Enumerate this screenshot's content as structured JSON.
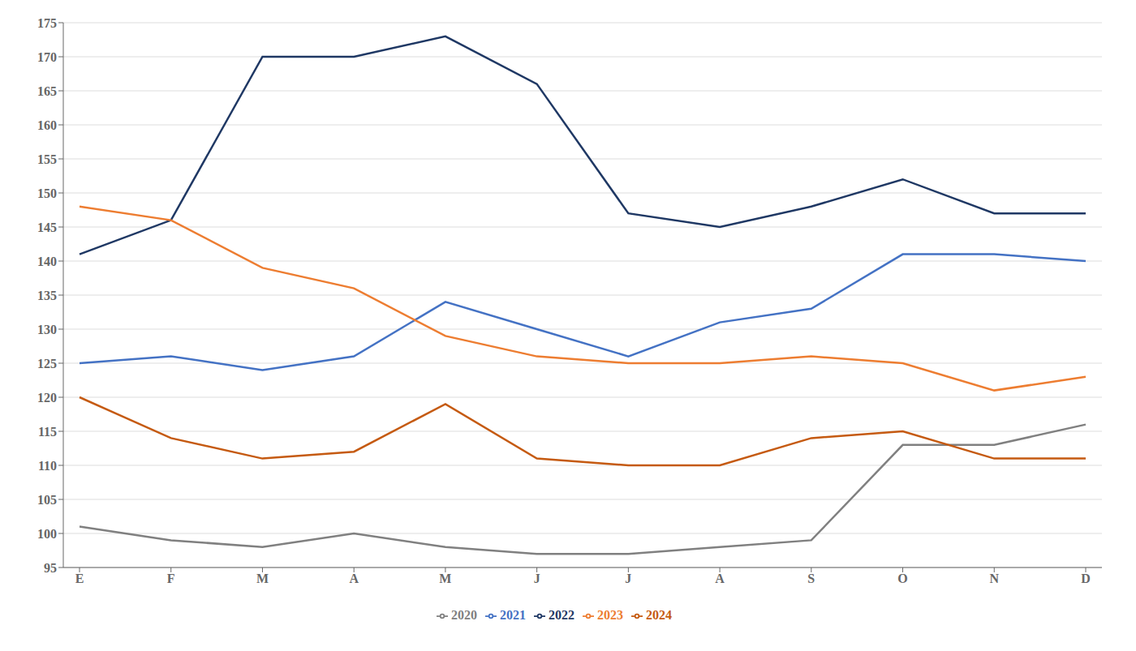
{
  "chart_data": {
    "type": "line",
    "categories": [
      "E",
      "F",
      "M",
      "A",
      "M",
      "J",
      "J",
      "A",
      "S",
      "O",
      "N",
      "D"
    ],
    "series": [
      {
        "name": "2020",
        "color": "#808080",
        "values": [
          101,
          99,
          98,
          100,
          98,
          97,
          97,
          98,
          99,
          113,
          113,
          116
        ]
      },
      {
        "name": "2021",
        "color": "#4472C4",
        "values": [
          125,
          126,
          124,
          126,
          134,
          130,
          126,
          131,
          133,
          141,
          141,
          140
        ]
      },
      {
        "name": "2022",
        "color": "#1F3864",
        "values": [
          141,
          146,
          170,
          170,
          173,
          166,
          147,
          145,
          148,
          152,
          147,
          147
        ]
      },
      {
        "name": "2023",
        "color": "#ED7D31",
        "values": [
          148,
          146,
          139,
          136,
          129,
          126,
          125,
          125,
          126,
          125,
          121,
          123
        ]
      },
      {
        "name": "2024",
        "color": "#C55A11",
        "values": [
          120,
          114,
          111,
          112,
          119,
          111,
          110,
          110,
          114,
          115,
          111,
          111
        ]
      }
    ],
    "ylim": [
      95,
      175
    ],
    "yticks": [
      95,
      100,
      105,
      110,
      115,
      120,
      125,
      130,
      135,
      140,
      145,
      150,
      155,
      160,
      165,
      170,
      175
    ],
    "grid": true,
    "legend": "bottom"
  }
}
